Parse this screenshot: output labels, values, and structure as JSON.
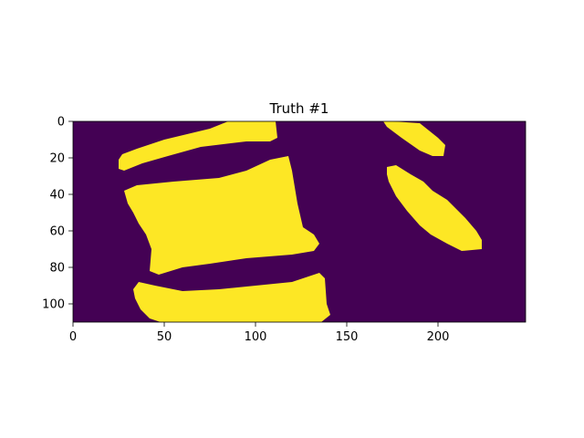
{
  "chart_data": {
    "type": "heatmap",
    "title": "Truth #1",
    "xlabel": "",
    "ylabel": "",
    "image_shape": [
      110,
      248
    ],
    "xlim": [
      0,
      248
    ],
    "ylim": [
      110,
      0
    ],
    "x_ticks": [
      0,
      50,
      100,
      150,
      200
    ],
    "y_ticks": [
      0,
      20,
      40,
      60,
      80,
      100
    ],
    "grid": false,
    "legend": "none",
    "colors": {
      "background_value_color": "#440154",
      "foreground_value_color": "#fde725",
      "axes_color": "#000000"
    },
    "regions": [
      {
        "name": "top-left-band",
        "value": 1,
        "outline": [
          [
            25,
            21
          ],
          [
            27,
            18
          ],
          [
            35,
            15
          ],
          [
            50,
            10
          ],
          [
            75,
            4
          ],
          [
            85,
            0
          ],
          [
            111,
            0
          ],
          [
            112,
            9
          ],
          [
            108,
            11
          ],
          [
            95,
            11
          ],
          [
            70,
            14
          ],
          [
            52,
            19
          ],
          [
            38,
            23
          ],
          [
            28,
            27
          ],
          [
            25,
            26
          ]
        ]
      },
      {
        "name": "central-block",
        "value": 1,
        "outline": [
          [
            28,
            38
          ],
          [
            35,
            35
          ],
          [
            55,
            33
          ],
          [
            80,
            31
          ],
          [
            95,
            27
          ],
          [
            108,
            21
          ],
          [
            118,
            19
          ],
          [
            120,
            27
          ],
          [
            123,
            45
          ],
          [
            126,
            58
          ],
          [
            132,
            62
          ],
          [
            135,
            67
          ],
          [
            132,
            71
          ],
          [
            120,
            73
          ],
          [
            95,
            75
          ],
          [
            75,
            78
          ],
          [
            60,
            80
          ],
          [
            47,
            84
          ],
          [
            42,
            82
          ],
          [
            43,
            70
          ],
          [
            40,
            62
          ],
          [
            36,
            56
          ],
          [
            33,
            50
          ],
          [
            30,
            45
          ]
        ]
      },
      {
        "name": "bottom-band",
        "value": 1,
        "outline": [
          [
            33,
            92
          ],
          [
            36,
            88
          ],
          [
            45,
            90
          ],
          [
            60,
            93
          ],
          [
            80,
            92
          ],
          [
            100,
            90
          ],
          [
            120,
            88
          ],
          [
            135,
            83
          ],
          [
            138,
            86
          ],
          [
            139,
            100
          ],
          [
            141,
            106
          ],
          [
            136,
            110
          ],
          [
            48,
            110
          ],
          [
            42,
            108
          ],
          [
            37,
            103
          ],
          [
            34,
            97
          ]
        ]
      },
      {
        "name": "right-upper-sliver",
        "value": 1,
        "outline": [
          [
            170,
            0
          ],
          [
            175,
            0
          ],
          [
            190,
            1
          ],
          [
            200,
            9
          ],
          [
            204,
            13
          ],
          [
            203,
            19
          ],
          [
            197,
            19
          ],
          [
            190,
            16
          ],
          [
            180,
            9
          ],
          [
            172,
            3
          ]
        ]
      },
      {
        "name": "right-diagonal-band",
        "value": 1,
        "outline": [
          [
            172,
            25
          ],
          [
            177,
            24
          ],
          [
            185,
            29
          ],
          [
            192,
            33
          ],
          [
            197,
            38
          ],
          [
            205,
            43
          ],
          [
            215,
            53
          ],
          [
            221,
            60
          ],
          [
            224,
            65
          ],
          [
            224,
            70
          ],
          [
            213,
            71
          ],
          [
            205,
            67
          ],
          [
            196,
            62
          ],
          [
            190,
            57
          ],
          [
            183,
            49
          ],
          [
            177,
            41
          ],
          [
            173,
            33
          ],
          [
            172,
            29
          ]
        ]
      }
    ]
  }
}
